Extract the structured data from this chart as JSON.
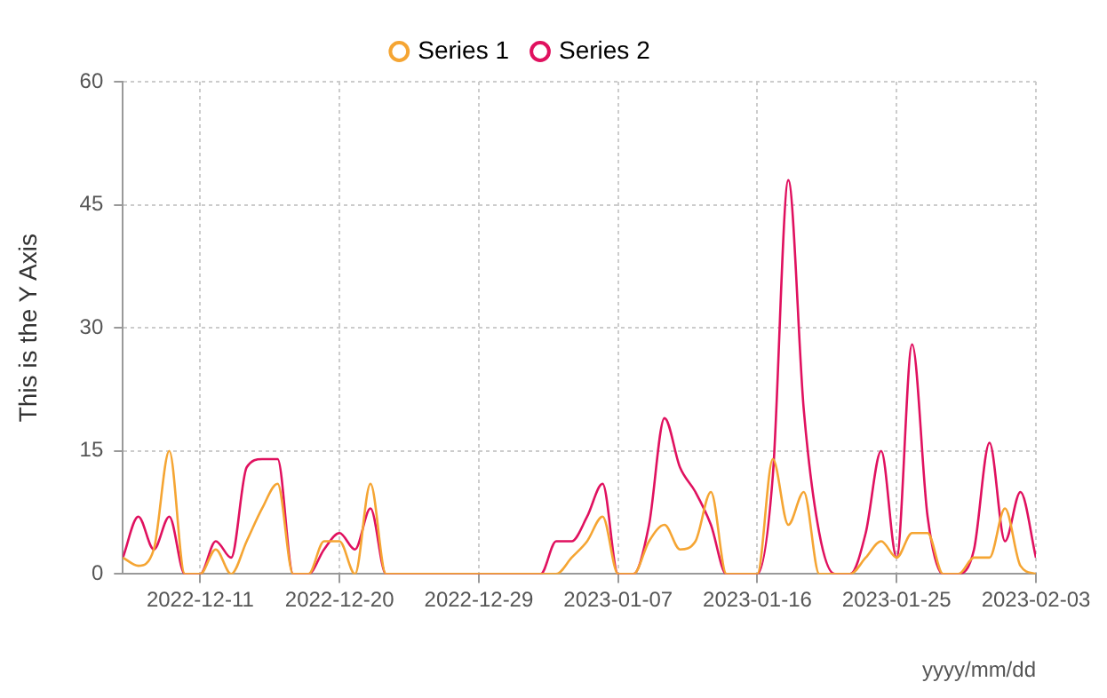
{
  "chart_data": {
    "type": "line",
    "xlabel": "yyyy/mm/dd",
    "ylabel": "This is the Y Axis",
    "x": [
      "2022-12-06",
      "2022-12-07",
      "2022-12-08",
      "2022-12-09",
      "2022-12-10",
      "2022-12-11",
      "2022-12-12",
      "2022-12-13",
      "2022-12-14",
      "2022-12-15",
      "2022-12-16",
      "2022-12-17",
      "2022-12-18",
      "2022-12-19",
      "2022-12-20",
      "2022-12-21",
      "2022-12-22",
      "2022-12-23",
      "2022-12-24",
      "2022-12-25",
      "2022-12-26",
      "2022-12-27",
      "2022-12-28",
      "2022-12-29",
      "2022-12-30",
      "2022-12-31",
      "2023-01-01",
      "2023-01-02",
      "2023-01-03",
      "2023-01-04",
      "2023-01-05",
      "2023-01-06",
      "2023-01-07",
      "2023-01-08",
      "2023-01-09",
      "2023-01-10",
      "2023-01-11",
      "2023-01-12",
      "2023-01-13",
      "2023-01-14",
      "2023-01-15",
      "2023-01-16",
      "2023-01-17",
      "2023-01-18",
      "2023-01-19",
      "2023-01-20",
      "2023-01-21",
      "2023-01-22",
      "2023-01-23",
      "2023-01-24",
      "2023-01-25",
      "2023-01-26",
      "2023-01-27",
      "2023-01-28",
      "2023-01-29",
      "2023-01-30",
      "2023-01-31",
      "2023-02-01",
      "2023-02-02",
      "2023-02-03"
    ],
    "series": [
      {
        "name": "Series 1",
        "color": "#f5a533",
        "values": [
          2,
          1,
          3,
          15,
          0,
          0,
          3,
          0,
          4,
          8,
          11,
          0,
          0,
          4,
          4,
          0,
          11,
          0,
          0,
          0,
          0,
          0,
          0,
          0,
          0,
          0,
          0,
          0,
          0,
          2,
          4,
          7,
          0,
          0,
          4,
          6,
          3,
          4,
          10,
          0,
          0,
          0,
          14,
          6,
          10,
          0,
          0,
          0,
          2,
          4,
          2,
          5,
          5,
          0,
          0,
          2,
          2,
          8,
          1,
          0
        ]
      },
      {
        "name": "Series 2",
        "color": "#e0115f",
        "values": [
          2,
          7,
          3,
          7,
          0,
          0,
          4,
          2,
          13,
          14,
          14,
          0,
          0,
          3,
          5,
          3,
          8,
          0,
          0,
          0,
          0,
          0,
          0,
          0,
          0,
          0,
          0,
          0,
          4,
          4,
          7,
          11,
          0,
          0,
          6,
          19,
          13,
          10,
          6,
          0,
          0,
          0,
          12,
          48,
          20,
          5,
          0,
          0,
          5,
          15,
          2,
          28,
          7,
          0,
          0,
          3,
          16,
          4,
          10,
          2
        ]
      }
    ],
    "xlim": [
      "2022-12-06",
      "2023-02-03"
    ],
    "xticks": [
      "2022-12-11",
      "2022-12-20",
      "2022-12-29",
      "2023-01-07",
      "2023-01-16",
      "2023-01-25",
      "2023-02-03"
    ],
    "ylim": [
      0,
      60
    ],
    "yticks": [
      0,
      15,
      30,
      45,
      60
    ],
    "grid": true,
    "legend": "top",
    "marker": "none",
    "line_style": "solid"
  }
}
